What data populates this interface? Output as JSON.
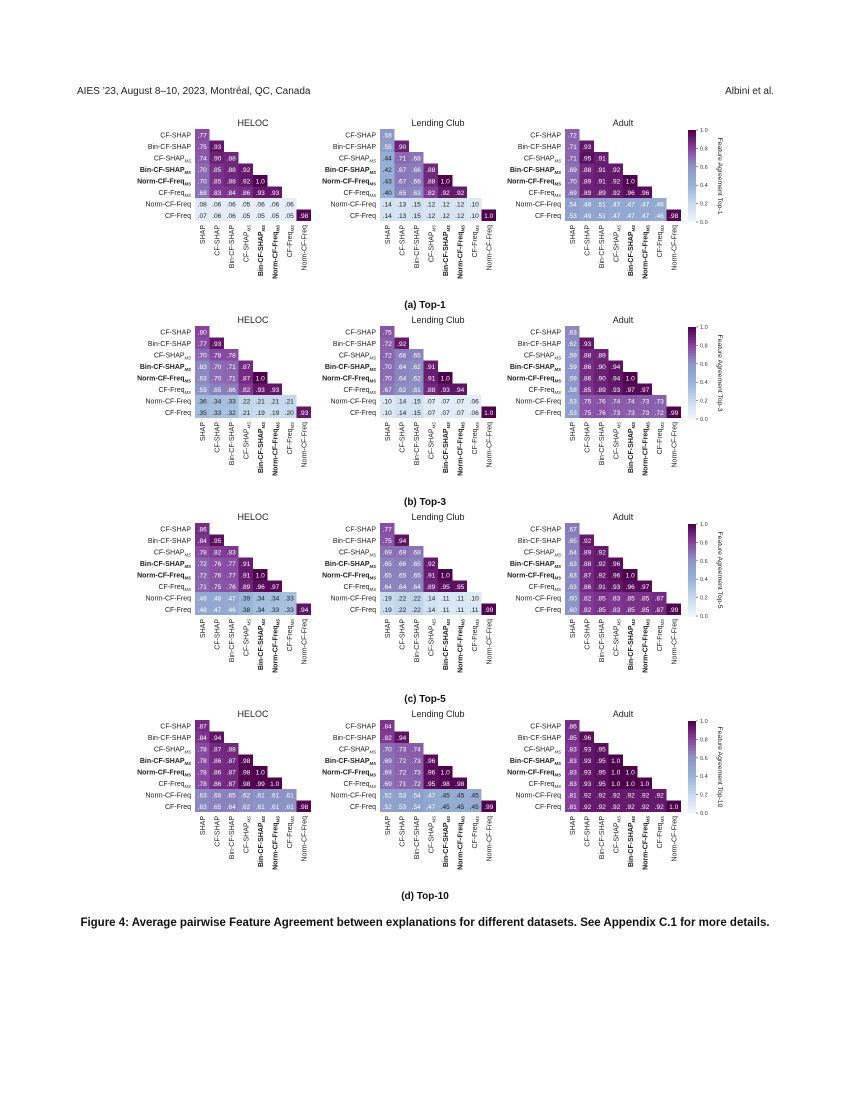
{
  "header": {
    "left": "AIES ’23, August 8–10, 2023, Montréal, QC, Canada",
    "right": "Albini et al."
  },
  "caption": "Figure 4: Average pairwise Feature Agreement between explanations for different datasets. See Appendix C.1 for more details.",
  "methods": [
    {
      "label": "CF-SHAP",
      "sub": "",
      "bold": false
    },
    {
      "label": "Bin-CF-SHAP",
      "sub": "",
      "bold": false
    },
    {
      "label": "CF-SHAP",
      "sub": "MS",
      "bold": false
    },
    {
      "label": "Bin-CF-SHAP",
      "sub": "MS",
      "bold": true
    },
    {
      "label": "Norm-CF-Freq",
      "sub": "MS",
      "bold": true
    },
    {
      "label": "CF-Freq",
      "sub": "MS",
      "bold": false
    },
    {
      "label": "Norm-CF-Freq",
      "sub": "",
      "bold": false
    },
    {
      "label": "CF-Freq",
      "sub": "",
      "bold": false
    }
  ],
  "column_labels": [
    {
      "label": "SHAP",
      "sub": "",
      "bold": false
    },
    {
      "label": "CF-SHAP",
      "sub": "",
      "bold": false
    },
    {
      "label": "Bin-CF-SHAP",
      "sub": "",
      "bold": false
    },
    {
      "label": "CF-SHAP",
      "sub": "MS",
      "bold": false
    },
    {
      "label": "Bin-CF-SHAP",
      "sub": "MS",
      "bold": true
    },
    {
      "label": "Norm-CF-Freq",
      "sub": "MS",
      "bold": true
    },
    {
      "label": "CF-Freq",
      "sub": "MS",
      "bold": false
    },
    {
      "label": "Norm-CF-Freq",
      "sub": "",
      "bold": false
    }
  ],
  "datasets": [
    "HELOC",
    "Lending Club",
    "Adult"
  ],
  "colorbar": {
    "ticks": [
      "0.0",
      "0.2",
      "0.4",
      "0.6",
      "0.8",
      "1.0"
    ],
    "range": [
      0,
      1
    ]
  },
  "chart_data": [
    {
      "type": "heatmap",
      "subcaption": "(a) Top-1",
      "colorbar_label": "Feature Agreement Top-1",
      "panels": [
        {
          "title": "HELOC",
          "matrix": [
            [
              ".77"
            ],
            [
              ".75",
              ".93"
            ],
            [
              ".74",
              ".90",
              ".88"
            ],
            [
              ".70",
              ".85",
              ".88",
              ".92"
            ],
            [
              ".70",
              ".85",
              ".88",
              ".92",
              "1.0"
            ],
            [
              ".68",
              ".83",
              ".84",
              ".86",
              ".93",
              ".93"
            ],
            [
              ".08",
              ".06",
              ".06",
              ".05",
              ".06",
              ".06",
              ".06"
            ],
            [
              ".07",
              ".06",
              ".06",
              ".05",
              ".05",
              ".05",
              ".05",
              ".98"
            ]
          ]
        },
        {
          "title": "Lending Club",
          "matrix": [
            [
              ".58"
            ],
            [
              ".55",
              ".90"
            ],
            [
              ".44",
              ".71",
              ".68"
            ],
            [
              ".42",
              ".67",
              ".66",
              ".88"
            ],
            [
              ".43",
              ".67",
              ".66",
              ".88",
              "1.0"
            ],
            [
              ".40",
              ".65",
              ".63",
              ".82",
              ".92",
              ".92"
            ],
            [
              ".14",
              ".13",
              ".15",
              ".12",
              ".12",
              ".12",
              ".10"
            ],
            [
              ".14",
              ".13",
              ".15",
              ".12",
              ".12",
              ".12",
              ".10",
              "1.0"
            ]
          ]
        },
        {
          "title": "Adult",
          "matrix": [
            [
              ".72"
            ],
            [
              ".71",
              ".93"
            ],
            [
              ".71",
              ".95",
              ".91"
            ],
            [
              ".69",
              ".88",
              ".91",
              ".92"
            ],
            [
              ".70",
              ".89",
              ".91",
              ".92",
              "1.0"
            ],
            [
              ".69",
              ".89",
              ".89",
              ".92",
              ".96",
              ".96"
            ],
            [
              ".54",
              ".49",
              ".51",
              ".47",
              ".47",
              ".47",
              ".46"
            ],
            [
              ".53",
              ".49",
              ".51",
              ".47",
              ".47",
              ".47",
              ".46",
              ".98"
            ]
          ]
        }
      ]
    },
    {
      "type": "heatmap",
      "subcaption": "(b) Top-3",
      "colorbar_label": "Feature Agreement Top-3",
      "panels": [
        {
          "title": "HELOC",
          "matrix": [
            [
              ".80"
            ],
            [
              ".77",
              ".93"
            ],
            [
              ".70",
              ".78",
              ".78"
            ],
            [
              ".63",
              ".70",
              ".71",
              ".87"
            ],
            [
              ".63",
              ".70",
              ".71",
              ".87",
              "1.0"
            ],
            [
              ".59",
              ".65",
              ".66",
              ".82",
              ".93",
              ".93"
            ],
            [
              ".36",
              ".34",
              ".33",
              ".22",
              ".21",
              ".21",
              ".21"
            ],
            [
              ".35",
              ".33",
              ".32",
              ".21",
              ".19",
              ".19",
              ".20",
              ".93"
            ]
          ]
        },
        {
          "title": "Lending Club",
          "matrix": [
            [
              ".75"
            ],
            [
              ".72",
              ".92"
            ],
            [
              ".72",
              ".66",
              ".65"
            ],
            [
              ".70",
              ".64",
              ".62",
              ".91"
            ],
            [
              ".70",
              ".64",
              ".62",
              ".91",
              "1.0"
            ],
            [
              ".67",
              ".62",
              ".61",
              ".88",
              ".93",
              ".94"
            ],
            [
              ".10",
              ".14",
              ".15",
              ".07",
              ".07",
              ".07",
              ".06"
            ],
            [
              ".10",
              ".14",
              ".15",
              ".07",
              ".07",
              ".07",
              ".06",
              "1.0"
            ]
          ]
        },
        {
          "title": "Adult",
          "matrix": [
            [
              ".63"
            ],
            [
              ".62",
              ".93"
            ],
            [
              ".59",
              ".88",
              ".89"
            ],
            [
              ".59",
              ".86",
              ".90",
              ".94"
            ],
            [
              ".59",
              ".86",
              ".90",
              ".94",
              "1.0"
            ],
            [
              ".58",
              ".85",
              ".89",
              ".93",
              ".97",
              ".97"
            ],
            [
              ".53",
              ".75",
              ".76",
              ".74",
              ".74",
              ".73",
              ".73"
            ],
            [
              ".53",
              ".75",
              ".76",
              ".73",
              ".73",
              ".73",
              ".72",
              ".99"
            ]
          ]
        }
      ]
    },
    {
      "type": "heatmap",
      "subcaption": "(c) Top-5",
      "colorbar_label": "Feature Agreement Top-5",
      "panels": [
        {
          "title": "HELOC",
          "matrix": [
            [
              ".86"
            ],
            [
              ".84",
              ".95"
            ],
            [
              ".78",
              ".82",
              ".83"
            ],
            [
              ".72",
              ".76",
              ".77",
              ".91"
            ],
            [
              ".72",
              ".76",
              ".77",
              ".91",
              "1.0"
            ],
            [
              ".71",
              ".75",
              ".76",
              ".89",
              ".96",
              ".97"
            ],
            [
              ".48",
              ".48",
              ".47",
              ".39",
              ".34",
              ".34",
              ".33"
            ],
            [
              ".48",
              ".47",
              ".46",
              ".38",
              ".34",
              ".33",
              ".33",
              ".94"
            ]
          ]
        },
        {
          "title": "Lending Club",
          "matrix": [
            [
              ".77"
            ],
            [
              ".75",
              ".94"
            ],
            [
              ".69",
              ".69",
              ".68"
            ],
            [
              ".65",
              ".66",
              ".65",
              ".92"
            ],
            [
              ".65",
              ".65",
              ".65",
              ".91",
              "1.0"
            ],
            [
              ".64",
              ".64",
              ".64",
              ".89",
              ".95",
              ".95"
            ],
            [
              ".19",
              ".22",
              ".22",
              ".14",
              ".11",
              ".11",
              ".10"
            ],
            [
              ".19",
              ".22",
              ".22",
              ".14",
              ".11",
              ".11",
              ".11",
              ".99"
            ]
          ]
        },
        {
          "title": "Adult",
          "matrix": [
            [
              ".67"
            ],
            [
              ".65",
              ".92"
            ],
            [
              ".64",
              ".89",
              ".92"
            ],
            [
              ".63",
              ".88",
              ".92",
              ".96"
            ],
            [
              ".63",
              ".87",
              ".92",
              ".96",
              "1.0"
            ],
            [
              ".63",
              ".86",
              ".91",
              ".93",
              ".96",
              ".97"
            ],
            [
              ".60",
              ".82",
              ".85",
              ".83",
              ".85",
              ".85",
              ".87"
            ],
            [
              ".60",
              ".82",
              ".85",
              ".83",
              ".85",
              ".85",
              ".87",
              ".99"
            ]
          ]
        }
      ]
    },
    {
      "type": "heatmap",
      "subcaption": "(d) Top-10",
      "colorbar_label": "Feature Agreement Top-10",
      "panels": [
        {
          "title": "HELOC",
          "matrix": [
            [
              ".87"
            ],
            [
              ".84",
              ".94"
            ],
            [
              ".78",
              ".87",
              ".88"
            ],
            [
              ".78",
              ".86",
              ".87",
              ".98"
            ],
            [
              ".78",
              ".86",
              ".87",
              ".98",
              "1.0"
            ],
            [
              ".78",
              ".86",
              ".87",
              ".98",
              ".99",
              "1.0"
            ],
            [
              ".63",
              ".65",
              ".65",
              ".62",
              ".61",
              ".61",
              ".61"
            ],
            [
              ".63",
              ".65",
              ".64",
              ".62",
              ".61",
              ".61",
              ".61",
              ".98"
            ]
          ]
        },
        {
          "title": "Lending Club",
          "matrix": [
            [
              ".84"
            ],
            [
              ".82",
              ".94"
            ],
            [
              ".70",
              ".73",
              ".74"
            ],
            [
              ".69",
              ".72",
              ".73",
              ".96"
            ],
            [
              ".69",
              ".72",
              ".73",
              ".96",
              "1.0"
            ],
            [
              ".69",
              ".71",
              ".72",
              ".95",
              ".98",
              ".98"
            ],
            [
              ".52",
              ".53",
              ".54",
              ".47",
              ".45",
              ".45",
              ".45"
            ],
            [
              ".52",
              ".53",
              ".54",
              ".47",
              ".45",
              ".45",
              ".45",
              ".99"
            ]
          ]
        },
        {
          "title": "Adult",
          "matrix": [
            [
              ".86"
            ],
            [
              ".85",
              ".96"
            ],
            [
              ".83",
              ".93",
              ".95"
            ],
            [
              ".83",
              ".93",
              ".95",
              "1.0"
            ],
            [
              ".83",
              ".93",
              ".95",
              "1.0",
              "1.0"
            ],
            [
              ".83",
              ".93",
              ".95",
              "1.0",
              "1.0",
              "1.0"
            ],
            [
              ".81",
              ".92",
              ".92",
              ".92",
              ".92",
              ".92",
              ".92"
            ],
            [
              ".81",
              ".92",
              ".92",
              ".92",
              ".92",
              ".92",
              ".92",
              "1.0"
            ]
          ]
        }
      ]
    }
  ]
}
